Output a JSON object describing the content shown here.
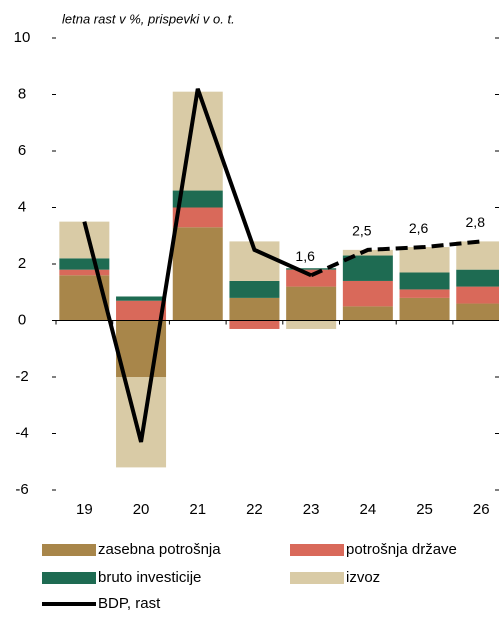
{
  "chart_data": {
    "type": "stacked_bar_line",
    "subtitle": "letna rast v %, prispevki v o. t.",
    "categories": [
      "19",
      "20",
      "21",
      "22",
      "23",
      "24",
      "25",
      "26"
    ],
    "series": [
      {
        "name": "zasebna potrošnja",
        "color": "#a8864a",
        "values": [
          1.6,
          -2.0,
          3.3,
          0.8,
          1.2,
          0.5,
          0.8,
          0.6
        ]
      },
      {
        "name": "potrošnja države",
        "color": "#d9695a",
        "values": [
          0.2,
          0.7,
          0.7,
          -0.3,
          0.6,
          0.9,
          0.3,
          0.6
        ]
      },
      {
        "name": "bruto investicije",
        "color": "#1e6b52",
        "values": [
          0.4,
          0.15,
          0.6,
          0.6,
          0.05,
          0.9,
          0.6,
          0.6
        ]
      },
      {
        "name": "izvoz",
        "color": "#d9cba6",
        "values": [
          1.3,
          -3.2,
          3.5,
          1.4,
          -0.3,
          0.2,
          0.9,
          1.0
        ]
      }
    ],
    "line": {
      "name": "BDP, rast",
      "color": "#000000",
      "values": [
        3.5,
        -4.3,
        8.2,
        2.5,
        1.6,
        2.5,
        2.6,
        2.8
      ],
      "value_labels": [
        null,
        null,
        null,
        null,
        "1,6",
        "2,5",
        "2,6",
        "2,8"
      ],
      "dashed_from": "23"
    },
    "ylim": [
      -6,
      10
    ],
    "yticks": [
      -6,
      -4,
      -2,
      0,
      2,
      4,
      6,
      8,
      10
    ]
  }
}
